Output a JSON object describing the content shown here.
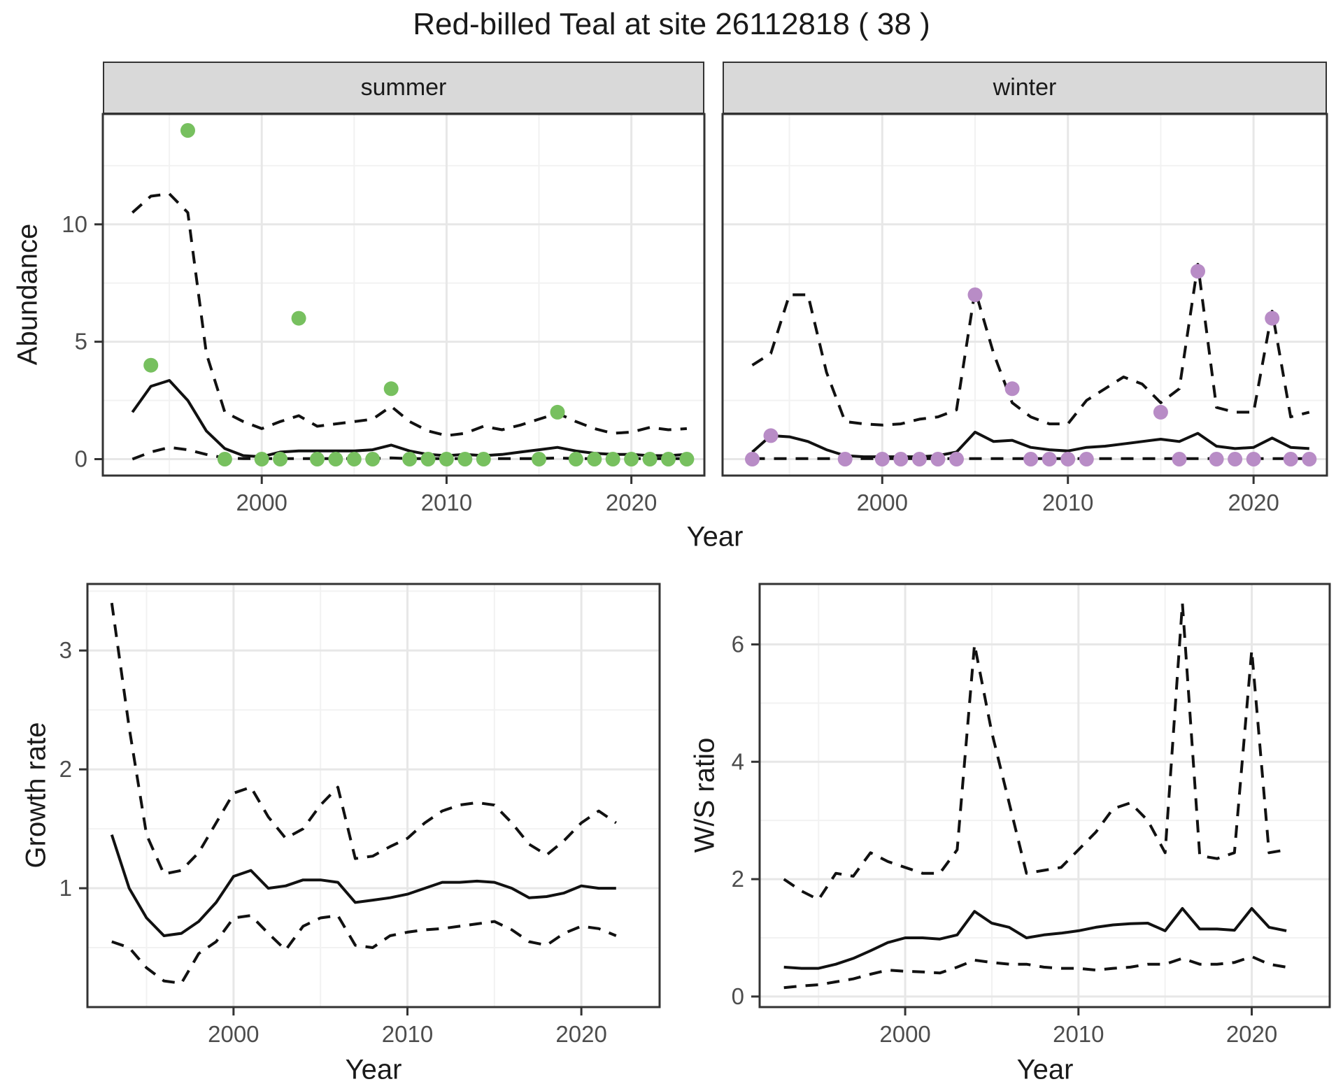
{
  "title": "Red-billed Teal at site 26112818 ( 38 )",
  "colors": {
    "summer_point": "#77c05f",
    "winter_point": "#b88cc6",
    "line": "#111111",
    "grid_major": "#e7e7e7",
    "grid_minor": "#f2f2f2",
    "panel_border": "#333333",
    "tick_mark": "#333333",
    "strip_fill": "#d9d9d9"
  },
  "chart_data": [
    {
      "type": "line",
      "facet_label": "summer",
      "ylabel": "Abundance",
      "xlabel": "Year",
      "xlim": [
        1991.4,
        2023.95
      ],
      "ylim": [
        -0.7,
        14.7
      ],
      "xticks": [
        2000,
        2010,
        2020
      ],
      "xminor": [
        1995,
        2005,
        2015
      ],
      "yticks": [
        0,
        5,
        10
      ],
      "yminor": [
        2.5,
        7.5,
        12.5
      ],
      "series": [
        {
          "name": "mean",
          "style": "solid",
          "x": [
            1993,
            1994,
            1995,
            1996,
            1997,
            1998,
            1999,
            2000,
            2001,
            2002,
            2003,
            2004,
            2005,
            2006,
            2007,
            2008,
            2009,
            2010,
            2011,
            2012,
            2013,
            2014,
            2015,
            2016,
            2017,
            2018,
            2019,
            2020,
            2021,
            2022,
            2023
          ],
          "y": [
            2.0,
            3.1,
            3.35,
            2.5,
            1.2,
            0.45,
            0.15,
            0.1,
            0.3,
            0.35,
            0.35,
            0.35,
            0.35,
            0.4,
            0.6,
            0.35,
            0.2,
            0.15,
            0.2,
            0.15,
            0.2,
            0.3,
            0.4,
            0.5,
            0.35,
            0.25,
            0.2,
            0.2,
            0.15,
            0.15,
            0.2
          ]
        },
        {
          "name": "upper_ci",
          "style": "dashed",
          "x": [
            1993,
            1994,
            1995,
            1996,
            1997,
            1998,
            1999,
            2000,
            2001,
            2002,
            2003,
            2004,
            2005,
            2006,
            2007,
            2008,
            2009,
            2010,
            2011,
            2012,
            2013,
            2014,
            2015,
            2016,
            2017,
            2018,
            2019,
            2020,
            2021,
            2022,
            2023
          ],
          "y": [
            10.5,
            11.2,
            11.3,
            10.5,
            4.5,
            2.0,
            1.6,
            1.3,
            1.6,
            1.85,
            1.4,
            1.5,
            1.6,
            1.7,
            2.25,
            1.6,
            1.2,
            1.0,
            1.1,
            1.4,
            1.25,
            1.45,
            1.7,
            1.95,
            1.6,
            1.3,
            1.1,
            1.15,
            1.35,
            1.25,
            1.3
          ]
        },
        {
          "name": "lower_ci",
          "style": "dashed",
          "x": [
            1993,
            1994,
            1995,
            1996,
            1997,
            1998,
            1999,
            2000,
            2001,
            2002,
            2003,
            2004,
            2005,
            2006,
            2007,
            2008,
            2009,
            2010,
            2011,
            2012,
            2013,
            2014,
            2015,
            2016,
            2017,
            2018,
            2019,
            2020,
            2021,
            2022,
            2023
          ],
          "y": [
            0.0,
            0.3,
            0.5,
            0.4,
            0.2,
            0.05,
            0.02,
            0.02,
            0.02,
            0.02,
            0.02,
            0.02,
            0.02,
            0.02,
            0.05,
            0.02,
            0.02,
            0.02,
            0.02,
            0.02,
            0.02,
            0.02,
            0.02,
            0.05,
            0.02,
            0.02,
            0.02,
            0.02,
            0.02,
            0.02,
            0.02
          ]
        }
      ],
      "points": {
        "name": "observed_counts",
        "color_key": "summer_point",
        "x": [
          1994,
          1996,
          1998,
          2000,
          2001,
          2002,
          2003,
          2004,
          2005,
          2006,
          2007,
          2008,
          2009,
          2010,
          2011,
          2012,
          2015,
          2016,
          2017,
          2018,
          2019,
          2020,
          2021,
          2022,
          2023
        ],
        "y": [
          4,
          14,
          0,
          0,
          0,
          6,
          0,
          0,
          0,
          0,
          3,
          0,
          0,
          0,
          0,
          0,
          0,
          2,
          0,
          0,
          0,
          0,
          0,
          0,
          0
        ]
      }
    },
    {
      "type": "line",
      "facet_label": "winter",
      "ylabel": "Abundance",
      "xlabel": "Year",
      "xlim": [
        1991.4,
        2023.95
      ],
      "ylim": [
        -0.7,
        14.7
      ],
      "xticks": [
        2000,
        2010,
        2020
      ],
      "xminor": [
        1995,
        2005,
        2015
      ],
      "yticks": [
        0,
        5,
        10
      ],
      "yminor": [
        2.5,
        7.5,
        12.5
      ],
      "series": [
        {
          "name": "mean",
          "style": "solid",
          "x": [
            1993,
            1994,
            1995,
            1996,
            1997,
            1998,
            1999,
            2000,
            2001,
            2002,
            2003,
            2004,
            2005,
            2006,
            2007,
            2008,
            2009,
            2010,
            2011,
            2012,
            2013,
            2014,
            2015,
            2016,
            2017,
            2018,
            2019,
            2020,
            2021,
            2022,
            2023
          ],
          "y": [
            0.3,
            1.0,
            0.95,
            0.75,
            0.4,
            0.15,
            0.1,
            0.1,
            0.1,
            0.1,
            0.15,
            0.3,
            1.15,
            0.75,
            0.8,
            0.5,
            0.4,
            0.35,
            0.5,
            0.55,
            0.65,
            0.75,
            0.85,
            0.75,
            1.1,
            0.55,
            0.45,
            0.5,
            0.9,
            0.5,
            0.45
          ]
        },
        {
          "name": "upper_ci",
          "style": "dashed",
          "x": [
            1993,
            1994,
            1995,
            1996,
            1997,
            1998,
            1999,
            2000,
            2001,
            2002,
            2003,
            2004,
            2005,
            2006,
            2007,
            2008,
            2009,
            2010,
            2011,
            2012,
            2013,
            2014,
            2015,
            2016,
            2017,
            2018,
            2019,
            2020,
            2021,
            2022,
            2023
          ],
          "y": [
            4.0,
            4.5,
            7.0,
            7.0,
            3.7,
            1.6,
            1.5,
            1.45,
            1.5,
            1.7,
            1.8,
            2.1,
            7.2,
            4.5,
            2.4,
            1.8,
            1.5,
            1.5,
            2.5,
            3.0,
            3.5,
            3.2,
            2.4,
            3.0,
            8.3,
            2.2,
            2.0,
            2.0,
            6.3,
            1.8,
            2.0
          ]
        },
        {
          "name": "lower_ci",
          "style": "dashed",
          "x": [
            1993,
            1994,
            1995,
            1996,
            1997,
            1998,
            1999,
            2000,
            2001,
            2002,
            2003,
            2004,
            2005,
            2006,
            2007,
            2008,
            2009,
            2010,
            2011,
            2012,
            2013,
            2014,
            2015,
            2016,
            2017,
            2018,
            2019,
            2020,
            2021,
            2022,
            2023
          ],
          "y": [
            0.02,
            0.02,
            0.02,
            0.02,
            0.02,
            0.02,
            0.02,
            0.02,
            0.02,
            0.02,
            0.02,
            0.02,
            0.02,
            0.02,
            0.02,
            0.02,
            0.02,
            0.02,
            0.02,
            0.02,
            0.02,
            0.02,
            0.02,
            0.02,
            0.02,
            0.02,
            0.02,
            0.02,
            0.02,
            0.02,
            0.02
          ]
        }
      ],
      "points": {
        "name": "observed_counts",
        "color_key": "winter_point",
        "x": [
          1993,
          1994,
          1998,
          2000,
          2001,
          2002,
          2003,
          2004,
          2005,
          2007,
          2008,
          2009,
          2010,
          2011,
          2015,
          2016,
          2017,
          2018,
          2019,
          2020,
          2021,
          2022,
          2023
        ],
        "y": [
          0,
          1,
          0,
          0,
          0,
          0,
          0,
          0,
          7,
          3,
          0,
          0,
          0,
          0,
          2,
          0,
          8,
          0,
          0,
          0,
          6,
          0,
          0
        ]
      }
    },
    {
      "type": "line",
      "facet_label": "",
      "ylabel": "Growth rate",
      "xlabel": "Year",
      "xlim": [
        1991.6,
        2024.5
      ],
      "ylim": [
        0.0,
        3.56
      ],
      "xticks": [
        2000,
        2010,
        2020
      ],
      "xminor": [
        1995,
        2005,
        2015
      ],
      "yticks": [
        1,
        2,
        3
      ],
      "yminor": [
        0.5,
        1.5,
        2.5,
        3.5
      ],
      "series": [
        {
          "name": "mean",
          "style": "solid",
          "x": [
            1993,
            1994,
            1995,
            1996,
            1997,
            1998,
            1999,
            2000,
            2001,
            2002,
            2003,
            2004,
            2005,
            2006,
            2007,
            2008,
            2009,
            2010,
            2011,
            2012,
            2013,
            2014,
            2015,
            2016,
            2017,
            2018,
            2019,
            2020,
            2021,
            2022
          ],
          "y": [
            1.45,
            1.0,
            0.75,
            0.6,
            0.62,
            0.72,
            0.88,
            1.1,
            1.15,
            1.0,
            1.02,
            1.07,
            1.07,
            1.05,
            0.88,
            0.9,
            0.92,
            0.95,
            1.0,
            1.05,
            1.05,
            1.06,
            1.05,
            1.0,
            0.92,
            0.93,
            0.96,
            1.02,
            1.0,
            1.0
          ]
        },
        {
          "name": "upper_ci",
          "style": "dashed",
          "x": [
            1993,
            1994,
            1995,
            1996,
            1997,
            1998,
            1999,
            2000,
            2001,
            2002,
            2003,
            2004,
            2005,
            2006,
            2007,
            2008,
            2009,
            2010,
            2011,
            2012,
            2013,
            2014,
            2015,
            2016,
            2017,
            2018,
            2019,
            2020,
            2021,
            2022
          ],
          "y": [
            3.4,
            2.35,
            1.45,
            1.12,
            1.15,
            1.3,
            1.55,
            1.8,
            1.85,
            1.6,
            1.42,
            1.5,
            1.7,
            1.85,
            1.25,
            1.27,
            1.35,
            1.42,
            1.55,
            1.65,
            1.7,
            1.72,
            1.7,
            1.55,
            1.37,
            1.28,
            1.4,
            1.55,
            1.65,
            1.55
          ]
        },
        {
          "name": "lower_ci",
          "style": "dashed",
          "x": [
            1993,
            1994,
            1995,
            1996,
            1997,
            1998,
            1999,
            2000,
            2001,
            2002,
            2003,
            2004,
            2005,
            2006,
            2007,
            2008,
            2009,
            2010,
            2011,
            2012,
            2013,
            2014,
            2015,
            2016,
            2017,
            2018,
            2019,
            2020,
            2021,
            2022
          ],
          "y": [
            0.55,
            0.5,
            0.33,
            0.22,
            0.2,
            0.45,
            0.55,
            0.75,
            0.77,
            0.62,
            0.48,
            0.68,
            0.75,
            0.77,
            0.52,
            0.5,
            0.6,
            0.63,
            0.65,
            0.66,
            0.68,
            0.7,
            0.72,
            0.65,
            0.55,
            0.52,
            0.62,
            0.68,
            0.66,
            0.6
          ]
        }
      ],
      "points": null
    },
    {
      "type": "line",
      "facet_label": "",
      "ylabel": "W/S ratio",
      "xlabel": "Year",
      "xlim": [
        1991.6,
        2024.5
      ],
      "ylim": [
        -0.18,
        7.03
      ],
      "xticks": [
        2000,
        2010,
        2020
      ],
      "xminor": [
        1995,
        2005,
        2015
      ],
      "yticks": [
        0,
        2,
        4,
        6
      ],
      "yminor": [
        1,
        3,
        5
      ],
      "series": [
        {
          "name": "mean",
          "style": "solid",
          "x": [
            1993,
            1994,
            1995,
            1996,
            1997,
            1998,
            1999,
            2000,
            2001,
            2002,
            2003,
            2004,
            2005,
            2006,
            2007,
            2008,
            2009,
            2010,
            2011,
            2012,
            2013,
            2014,
            2015,
            2016,
            2017,
            2018,
            2019,
            2020,
            2021,
            2022
          ],
          "y": [
            0.5,
            0.48,
            0.48,
            0.55,
            0.65,
            0.78,
            0.92,
            1.0,
            1.0,
            0.98,
            1.05,
            1.45,
            1.25,
            1.18,
            1.0,
            1.05,
            1.08,
            1.12,
            1.18,
            1.22,
            1.24,
            1.25,
            1.12,
            1.5,
            1.15,
            1.15,
            1.13,
            1.5,
            1.18,
            1.12
          ]
        },
        {
          "name": "upper_ci",
          "style": "dashed",
          "x": [
            1993,
            1994,
            1995,
            1996,
            1997,
            1998,
            1999,
            2000,
            2001,
            2002,
            2003,
            2004,
            2005,
            2006,
            2007,
            2008,
            2009,
            2010,
            2011,
            2012,
            2013,
            2014,
            2015,
            2016,
            2017,
            2018,
            2019,
            2020,
            2021,
            2022
          ],
          "y": [
            2.0,
            1.8,
            1.65,
            2.1,
            2.05,
            2.45,
            2.3,
            2.2,
            2.1,
            2.1,
            2.5,
            6.0,
            4.5,
            3.3,
            2.1,
            2.15,
            2.2,
            2.5,
            2.8,
            3.2,
            3.3,
            3.0,
            2.45,
            6.7,
            2.4,
            2.35,
            2.45,
            5.9,
            2.45,
            2.5
          ]
        },
        {
          "name": "lower_ci",
          "style": "dashed",
          "x": [
            1993,
            1994,
            1995,
            1996,
            1997,
            1998,
            1999,
            2000,
            2001,
            2002,
            2003,
            2004,
            2005,
            2006,
            2007,
            2008,
            2009,
            2010,
            2011,
            2012,
            2013,
            2014,
            2015,
            2016,
            2017,
            2018,
            2019,
            2020,
            2021,
            2022
          ],
          "y": [
            0.15,
            0.18,
            0.2,
            0.25,
            0.3,
            0.38,
            0.45,
            0.43,
            0.42,
            0.4,
            0.5,
            0.62,
            0.58,
            0.55,
            0.55,
            0.5,
            0.48,
            0.48,
            0.45,
            0.48,
            0.5,
            0.55,
            0.55,
            0.65,
            0.55,
            0.55,
            0.58,
            0.68,
            0.55,
            0.5
          ]
        }
      ],
      "points": null
    }
  ]
}
